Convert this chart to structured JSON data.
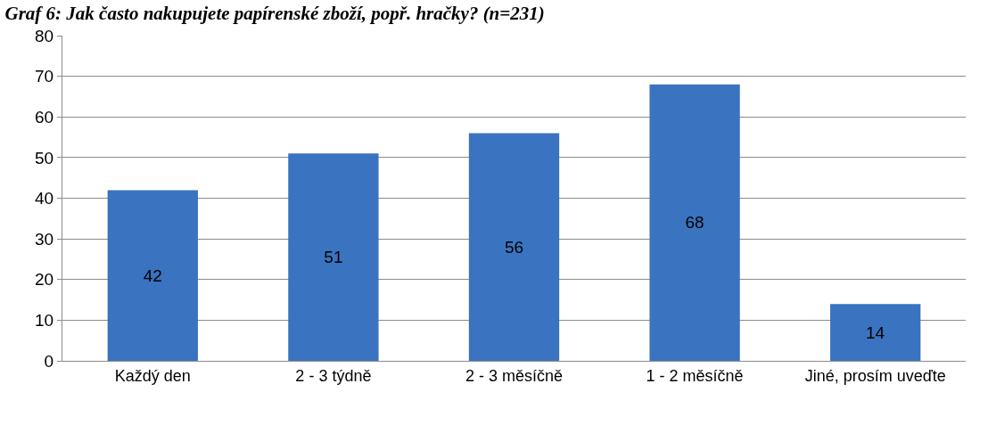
{
  "chart_data": {
    "type": "bar",
    "title": "Graf 6: Jak často nakupujete papírenské zboží, popř. hračky? (n=231)",
    "categories": [
      "Každý den",
      "2 - 3 týdně",
      "2 - 3 měsíčně",
      "1 - 2 měsíčně",
      "Jiné, prosím uveďte"
    ],
    "values": [
      42,
      51,
      56,
      68,
      14
    ],
    "color": "#3a73c0",
    "ylim": [
      0,
      80
    ],
    "yticks": [
      0,
      10,
      20,
      30,
      40,
      50,
      60,
      70,
      80
    ],
    "grid": "y",
    "data_labels": true,
    "legend": false
  }
}
